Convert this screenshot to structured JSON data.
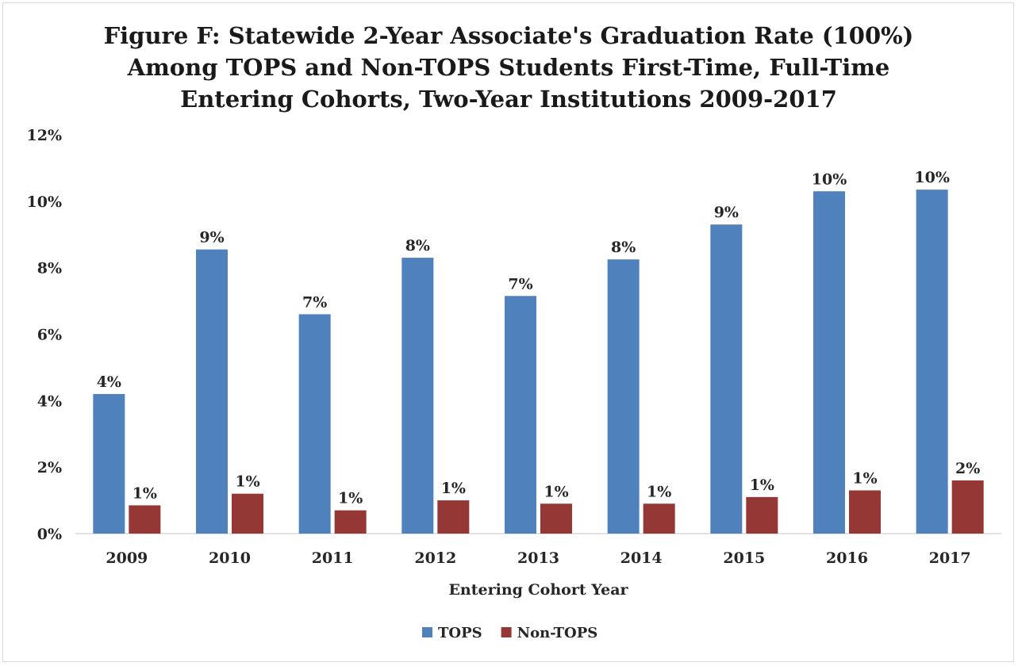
{
  "chart_data": {
    "type": "bar",
    "title_lines": [
      "Figure F: Statewide 2-Year Associate's Graduation Rate (100%)",
      "Among TOPS and Non-TOPS Students First-Time, Full-Time",
      "Entering Cohorts, Two-Year  Institutions 2009-2017"
    ],
    "xlabel": "Entering Cohort Year",
    "ylabel": "",
    "ylim": [
      0,
      12
    ],
    "yticks": [
      "0%",
      "2%",
      "4%",
      "6%",
      "8%",
      "10%",
      "12%"
    ],
    "grid": false,
    "legend_position": "bottom",
    "categories": [
      "2009",
      "2010",
      "2011",
      "2012",
      "2013",
      "2014",
      "2015",
      "2016",
      "2017"
    ],
    "series": [
      {
        "name": "TOPS",
        "color": "#4F81BD",
        "values": [
          4.2,
          8.55,
          6.6,
          8.3,
          7.15,
          8.25,
          9.3,
          10.3,
          10.35
        ],
        "labels": [
          "4%",
          "9%",
          "7%",
          "8%",
          "7%",
          "8%",
          "9%",
          "10%",
          "10%"
        ]
      },
      {
        "name": "Non-TOPS",
        "color": "#953735",
        "values": [
          0.85,
          1.2,
          0.7,
          1.0,
          0.9,
          0.9,
          1.1,
          1.3,
          1.6
        ],
        "labels": [
          "1%",
          "1%",
          "1%",
          "1%",
          "1%",
          "1%",
          "1%",
          "1%",
          "2%"
        ]
      }
    ]
  }
}
